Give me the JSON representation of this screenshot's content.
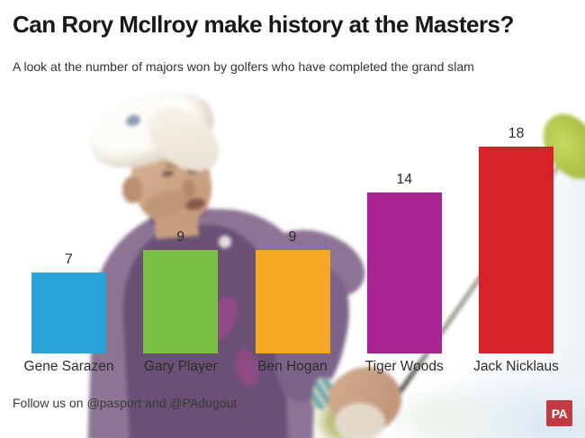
{
  "header": {
    "title": "Can Rory McIlroy make history at the Masters?",
    "subtitle": "A look at the number of majors won by golfers who have completed the grand slam"
  },
  "chart_data": {
    "type": "bar",
    "title": "Can Rory McIlroy make history at the Masters?",
    "subtitle": "A look at the number of majors won by golfers who have completed the grand slam",
    "categories": [
      "Gene Sarazen",
      "Gary Player",
      "Ben Hogan",
      "Tiger Woods",
      "Jack Nicklaus"
    ],
    "values": [
      7,
      9,
      9,
      14,
      18
    ],
    "bar_colors": [
      "#2aa3d9",
      "#7ac143",
      "#f7a723",
      "#a82291",
      "#d62329"
    ],
    "value_labels_shown": true,
    "xlabel": "",
    "ylabel": "",
    "ylim": [
      0,
      18
    ],
    "grid": false,
    "legend": false,
    "axes_shown": false
  },
  "footer": {
    "text": "Follow us on @pasport and @PAdugout",
    "logo_text": "PA",
    "logo_color": "#c23b42"
  }
}
